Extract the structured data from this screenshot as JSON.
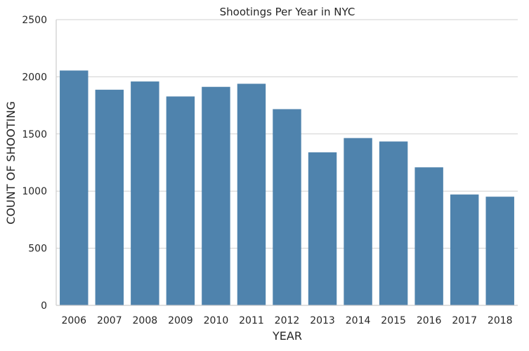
{
  "chart_data": {
    "type": "bar",
    "title": "Shootings Per Year in NYC",
    "xlabel": "YEAR",
    "ylabel": "COUNT OF SHOOTING",
    "categories": [
      "2006",
      "2007",
      "2008",
      "2009",
      "2010",
      "2011",
      "2012",
      "2013",
      "2014",
      "2015",
      "2016",
      "2017",
      "2018"
    ],
    "values": [
      2055,
      1887,
      1959,
      1828,
      1912,
      1939,
      1717,
      1339,
      1464,
      1434,
      1208,
      970,
      951
    ],
    "ylim": [
      0,
      2500
    ],
    "yticks": [
      0,
      500,
      1000,
      1500,
      2000,
      2500
    ],
    "grid": "horizontal",
    "bar_color": "#4f83ad",
    "grid_color": "#d0d0d0",
    "axis_color": "#cccccc"
  }
}
